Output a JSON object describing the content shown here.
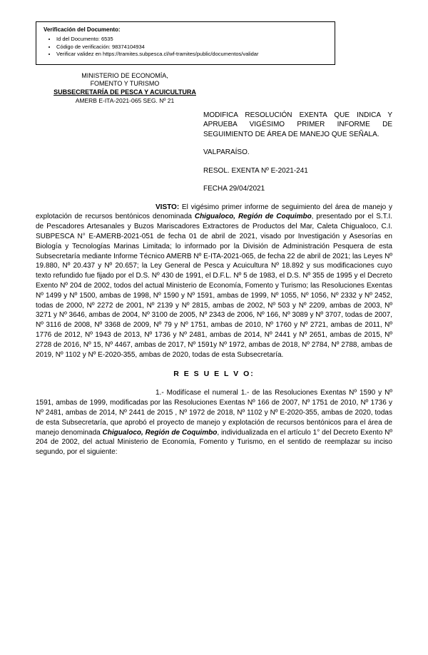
{
  "verification": {
    "heading": "Verificación del Documento:",
    "items": [
      "Id del Documento: 6535",
      "Código de verificación: 98374104934",
      "Verificar validez en https://tramites.subpesca.cl/wf-tramites/public/documentos/validar"
    ]
  },
  "ministry": {
    "line1": "MINISTERIO DE ECONOMÍA,",
    "line2": "FOMENTO Y TURISMO",
    "sub": "SUBSECRETARÍA DE PESCA Y ACUICULTURA",
    "ref": "AMERB E-ITA-2021-065 SEG. Nº 21"
  },
  "title": "MODIFICA RESOLUCIÓN EXENTA QUE INDICA Y APRUEBA VIGÉSIMO PRIMER INFORME DE SEGUIMIENTO DE ÁREA DE MANEJO QUE SEÑALA.",
  "city": "VALPARAÍSO.",
  "resol_label": "RESOL. EXENTA Nº E-2021-241",
  "fecha_label": "FECHA 29/04/2021",
  "visto": {
    "label": "VISTO:",
    "text": " El vigésimo primer informe de seguimiento del área de manejo y explotación de recursos bentónicos denominada ",
    "bold": "Chigualoco, Región de Coquimbo",
    "text2": ", presentado por el S.T.I. de Pescadores Artesanales y Buzos Mariscadores Extractores de Productos del Mar, Caleta Chigualoco, C.I. SUBPESCA N° E-AMERB-2021-051 de fecha 01 de abril de 2021, visado por Investigación y Asesorías en Biología y Tecnologías Marinas Limitada; lo informado por la División de Administración Pesquera de esta Subsecretaría mediante Informe Técnico AMERB Nº E-ITA-2021-065, de fecha 22 de abril de 2021; las Leyes Nº 19.880, Nº 20.437 y Nº 20.657; la Ley General de Pesca y Acuicultura Nº 18.892 y sus modificaciones cuyo texto refundido fue fijado por el D.S. Nº 430 de 1991, el D.F.L. Nº 5 de 1983, el D.S. Nº 355 de 1995 y el Decreto Exento Nº 204 de 2002, todos del actual Ministerio de Economía, Fomento y Turismo; las Resoluciones Exentas Nº 1499 y Nº 1500, ambas de 1998, Nº 1590 y Nº 1591, ambas de 1999, Nº 1055, Nº 1056, Nº 2332 y Nº 2452, todas de 2000, Nº 2272 de 2001, Nº 2139 y Nº 2815, ambas de 2002, Nº 503 y Nº 2209, ambas de 2003, Nº 3271 y Nº 3646, ambas de 2004, Nº 3100 de 2005, Nº 2343 de 2006, Nº 166, Nº 3089 y Nº 3707, todas de 2007, Nº 3116 de 2008, Nº 3368 de 2009, Nº 79 y Nº 1751, ambas de 2010, Nº 1760 y Nº 2721, ambas de 2011, Nº 1776 de 2012, Nº 1943 de 2013, Nº 1736 y Nº 2481, ambas de 2014, Nº 2441 y Nº 2651, ambas de 2015, Nº 2728 de 2016, Nº 15, Nº 4467, ambas de 2017, Nº 1591y Nº 1972, ambas de 2018, Nº 2784, Nº 2788, ambas de 2019, Nº 1102 y Nº E-2020-355, ambas de 2020, todas de esta Subsecretaría."
  },
  "resuelvo": "R E S U E L V O:",
  "para1": {
    "lead": "1.- Modifícase el numeral 1.- de las Resoluciones Exentas Nº 1590 y Nº 1591, ambas de 1999, modificadas por las Resoluciones Exentas Nº 166 de 2007, Nº 1751 de 2010, Nº 1736 y Nº 2481, ambas de 2014, Nº 2441 de 2015 , Nº 1972 de 2018, Nº 1102 y Nº E-2020-355, ambas de 2020, todas de esta Subsecretaría, que aprobó el proyecto de manejo y explotación de recursos bentónicos para el área de manejo denominada ",
    "bold": "Chigualoco, Región de Coquimbo",
    "tail": ", individualizada en el artículo 1° del Decreto Exento Nº 204 de 2002, del actual Ministerio de Economía, Fomento y Turismo, en el sentido de reemplazar su inciso segundo, por el siguiente:"
  }
}
